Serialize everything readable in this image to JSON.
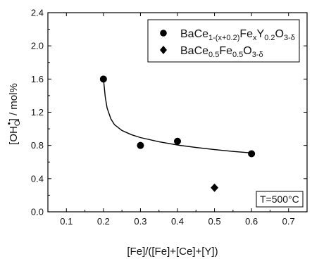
{
  "chart_data": {
    "type": "scatter",
    "xlabel": "[Fe]/([Fe]+[Ce]+[Y])",
    "ylabel_parts": {
      "open": "[OH",
      "sub": "O",
      "sup": "•",
      "close": "] / mol%"
    },
    "xlim": [
      0.05,
      0.75
    ],
    "ylim": [
      0.0,
      2.4
    ],
    "x_ticks": [
      "0.1",
      "0.2",
      "0.3",
      "0.4",
      "0.5",
      "0.6",
      "0.7"
    ],
    "y_ticks": [
      "0.0",
      "0.4",
      "0.8",
      "1.2",
      "1.6",
      "2.0",
      "2.4"
    ],
    "series": [
      {
        "marker": "circle",
        "label_parts": [
          {
            "t": "BaCe",
            "s": "normal"
          },
          {
            "t": "1-(x+0.2)",
            "s": "sub"
          },
          {
            "t": "Fe",
            "s": "normal"
          },
          {
            "t": "x",
            "s": "sub"
          },
          {
            "t": "Y",
            "s": "normal"
          },
          {
            "t": "0.2",
            "s": "sub"
          },
          {
            "t": "O",
            "s": "normal"
          },
          {
            "t": "3-δ",
            "s": "sub"
          }
        ],
        "points": [
          {
            "x": 0.2,
            "y": 1.6
          },
          {
            "x": 0.3,
            "y": 0.8
          },
          {
            "x": 0.4,
            "y": 0.85
          },
          {
            "x": 0.6,
            "y": 0.7
          }
        ]
      },
      {
        "marker": "diamond",
        "label_parts": [
          {
            "t": "BaCe",
            "s": "normal"
          },
          {
            "t": "0.5",
            "s": "sub"
          },
          {
            "t": "Fe",
            "s": "normal"
          },
          {
            "t": "0.5",
            "s": "sub"
          },
          {
            "t": "O",
            "s": "normal"
          },
          {
            "t": "3-δ",
            "s": "sub"
          }
        ],
        "points": [
          {
            "x": 0.5,
            "y": 0.29
          }
        ]
      }
    ],
    "fit_curve": {
      "points": [
        {
          "x": 0.2,
          "y": 1.6
        },
        {
          "x": 0.205,
          "y": 1.38
        },
        {
          "x": 0.21,
          "y": 1.25
        },
        {
          "x": 0.22,
          "y": 1.12
        },
        {
          "x": 0.23,
          "y": 1.05
        },
        {
          "x": 0.25,
          "y": 0.98
        },
        {
          "x": 0.275,
          "y": 0.93
        },
        {
          "x": 0.3,
          "y": 0.895
        },
        {
          "x": 0.35,
          "y": 0.845
        },
        {
          "x": 0.4,
          "y": 0.805
        },
        {
          "x": 0.45,
          "y": 0.775
        },
        {
          "x": 0.5,
          "y": 0.75
        },
        {
          "x": 0.55,
          "y": 0.728
        },
        {
          "x": 0.6,
          "y": 0.71
        }
      ]
    },
    "legend_position": "top-right",
    "annotation": "T=500°C",
    "colors": {
      "marker": "#000000",
      "line": "#000000",
      "background": "#ffffff"
    }
  }
}
